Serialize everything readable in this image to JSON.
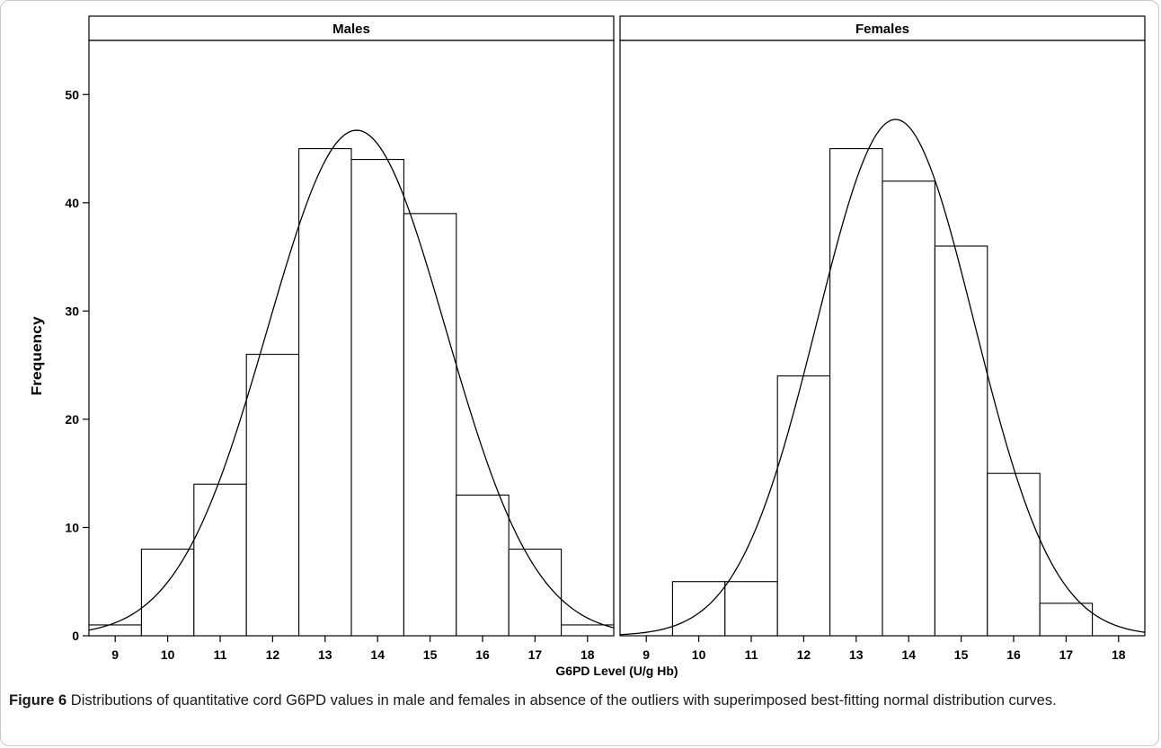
{
  "chart_data": {
    "type": "bar",
    "ylabel": "Frequency",
    "xlabel": "G6PD Level (U/g Hb)",
    "ylim": [
      0,
      55
    ],
    "yticks": [
      0,
      10,
      20,
      30,
      40,
      50
    ],
    "xlim": [
      8.5,
      18.5
    ],
    "xticks": [
      9,
      10,
      11,
      12,
      13,
      14,
      15,
      16,
      17,
      18
    ],
    "bin_width": 1,
    "grid": false,
    "panels": [
      {
        "title": "Males",
        "bins": [
          {
            "x": 9,
            "count": 1
          },
          {
            "x": 10,
            "count": 8
          },
          {
            "x": 11,
            "count": 14
          },
          {
            "x": 12,
            "count": 26
          },
          {
            "x": 13,
            "count": 45
          },
          {
            "x": 14,
            "count": 44
          },
          {
            "x": 15,
            "count": 39
          },
          {
            "x": 16,
            "count": 13
          },
          {
            "x": 17,
            "count": 8
          },
          {
            "x": 18,
            "count": 1
          }
        ],
        "normal_curve": {
          "mean": 13.6,
          "sd": 1.7,
          "peak": 46.7
        }
      },
      {
        "title": "Females",
        "bins": [
          {
            "x": 10,
            "count": 5
          },
          {
            "x": 11,
            "count": 5
          },
          {
            "x": 12,
            "count": 24
          },
          {
            "x": 13,
            "count": 45
          },
          {
            "x": 14,
            "count": 42
          },
          {
            "x": 15,
            "count": 36
          },
          {
            "x": 16,
            "count": 15
          },
          {
            "x": 17,
            "count": 3
          }
        ],
        "normal_curve": {
          "mean": 13.75,
          "sd": 1.5,
          "peak": 47.7
        }
      }
    ]
  },
  "caption": {
    "label": "Figure 6",
    "text": "Distributions of quantitative cord G6PD values in male and females in absence of the outliers with superimposed best-fitting normal distribution curves."
  }
}
